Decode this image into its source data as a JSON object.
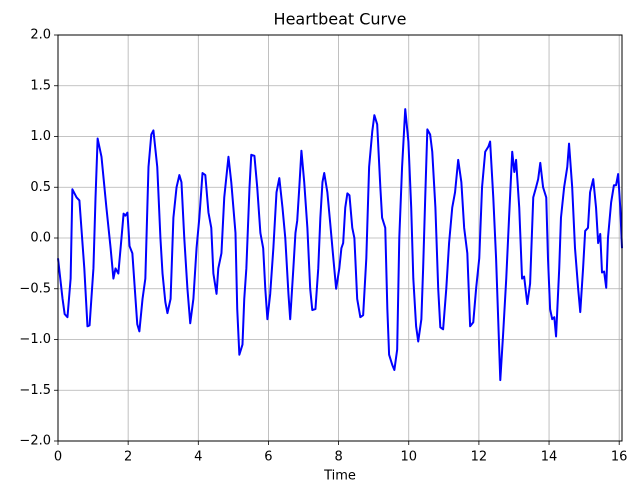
{
  "chart_data": {
    "type": "line",
    "title": "Heartbeat Curve",
    "xlabel": "Time",
    "color": "#0000ff",
    "grid": true,
    "xlim": [
      0,
      16.08
    ],
    "ylim": [
      -2.0,
      2.0
    ],
    "xticks": [
      0,
      2,
      4,
      6,
      8,
      10,
      12,
      14,
      16
    ],
    "yticks": [
      {
        "value": -2.0,
        "label": "−2.0"
      },
      {
        "value": -1.5,
        "label": "−1.5"
      },
      {
        "value": -1.0,
        "label": "−1.0"
      },
      {
        "value": -0.5,
        "label": "−0.5"
      },
      {
        "value": 0.0,
        "label": "0.0"
      },
      0.5,
      {
        "value": 1.0,
        "label": "1.0"
      },
      1.5,
      {
        "value": 2.0,
        "label": "2.0"
      }
    ],
    "x": [
      0,
      0.13,
      0.19,
      0.27,
      0.36,
      0.41,
      0.53,
      0.61,
      0.75,
      0.84,
      0.9,
      1.01,
      1.07,
      1.13,
      1.24,
      1.38,
      1.5,
      1.58,
      1.64,
      1.72,
      1.81,
      1.87,
      1.92,
      1.98,
      2.04,
      2.12,
      2.21,
      2.26,
      2.32,
      2.41,
      2.49,
      2.58,
      2.66,
      2.72,
      2.83,
      2.92,
      2.98,
      3.06,
      3.12,
      3.21,
      3.29,
      3.38,
      3.46,
      3.52,
      3.6,
      3.69,
      3.77,
      3.86,
      3.95,
      4.03,
      4.12,
      4.2,
      4.29,
      4.37,
      4.43,
      4.52,
      4.57,
      4.66,
      4.74,
      4.86,
      4.94,
      5.06,
      5.11,
      5.17,
      5.26,
      5.31,
      5.37,
      5.46,
      5.51,
      5.6,
      5.68,
      5.77,
      5.85,
      5.91,
      5.97,
      6.05,
      6.14,
      6.23,
      6.31,
      6.4,
      6.48,
      6.57,
      6.62,
      6.71,
      6.77,
      6.82,
      6.88,
      6.94,
      7.02,
      7.11,
      7.19,
      7.25,
      7.34,
      7.42,
      7.48,
      7.54,
      7.59,
      7.68,
      7.76,
      7.85,
      7.93,
      8.02,
      8.08,
      8.13,
      8.19,
      8.25,
      8.31,
      8.39,
      8.45,
      8.53,
      8.62,
      8.7,
      8.79,
      8.87,
      8.96,
      9.02,
      9.1,
      9.19,
      9.24,
      9.33,
      9.39,
      9.44,
      9.53,
      9.59,
      9.67,
      9.73,
      9.81,
      9.9,
      9.99,
      10.07,
      10.13,
      10.21,
      10.27,
      10.36,
      10.41,
      10.47,
      10.53,
      10.61,
      10.67,
      10.76,
      10.84,
      10.9,
      10.98,
      11.07,
      11.15,
      11.24,
      11.32,
      11.41,
      11.5,
      11.58,
      11.67,
      11.75,
      11.84,
      11.92,
      12.01,
      12.09,
      12.18,
      12.27,
      12.32,
      12.41,
      12.49,
      12.55,
      12.61,
      12.69,
      12.78,
      12.86,
      12.95,
      13.01,
      13.06,
      13.15,
      13.23,
      13.29,
      13.38,
      13.46,
      13.55,
      13.63,
      13.69,
      13.75,
      13.83,
      13.92,
      13.97,
      14.03,
      14.09,
      14.15,
      14.2,
      14.29,
      14.34,
      14.43,
      14.52,
      14.57,
      14.66,
      14.74,
      14.83,
      14.89,
      14.97,
      15.03,
      15.11,
      15.17,
      15.26,
      15.34,
      15.4,
      15.46,
      15.51,
      15.57,
      15.63,
      15.68,
      15.77,
      15.85,
      15.91,
      15.97,
      16.03,
      16.08
    ],
    "values": [
      -0.2,
      -0.6,
      -0.75,
      -0.78,
      -0.4,
      0.48,
      0.4,
      0.37,
      -0.3,
      -0.87,
      -0.86,
      -0.3,
      0.4,
      0.98,
      0.8,
      0.3,
      -0.1,
      -0.4,
      -0.3,
      -0.35,
      0.0,
      0.24,
      0.22,
      0.25,
      -0.08,
      -0.15,
      -0.6,
      -0.85,
      -0.92,
      -0.6,
      -0.4,
      0.7,
      1.02,
      1.06,
      0.7,
      0.0,
      -0.35,
      -0.63,
      -0.74,
      -0.6,
      0.2,
      0.5,
      0.62,
      0.55,
      0.0,
      -0.5,
      -0.84,
      -0.6,
      -0.1,
      0.2,
      0.64,
      0.62,
      0.25,
      0.1,
      -0.35,
      -0.55,
      -0.3,
      -0.15,
      0.4,
      0.8,
      0.55,
      0.05,
      -0.7,
      -1.15,
      -1.05,
      -0.6,
      -0.3,
      0.5,
      0.82,
      0.81,
      0.5,
      0.05,
      -0.1,
      -0.5,
      -0.8,
      -0.55,
      -0.1,
      0.45,
      0.59,
      0.3,
      0.0,
      -0.55,
      -0.8,
      -0.3,
      0.05,
      0.17,
      0.5,
      0.86,
      0.55,
      0.1,
      -0.5,
      -0.71,
      -0.7,
      -0.3,
      0.2,
      0.55,
      0.64,
      0.45,
      0.15,
      -0.2,
      -0.5,
      -0.3,
      -0.1,
      -0.05,
      0.3,
      0.44,
      0.42,
      0.1,
      0.0,
      -0.6,
      -0.78,
      -0.76,
      -0.2,
      0.7,
      1.05,
      1.21,
      1.12,
      0.5,
      0.2,
      0.1,
      -0.7,
      -1.15,
      -1.25,
      -1.3,
      -1.1,
      0.0,
      0.7,
      1.27,
      0.95,
      0.3,
      -0.4,
      -0.87,
      -1.02,
      -0.8,
      -0.3,
      0.4,
      1.07,
      1.02,
      0.85,
      0.3,
      -0.5,
      -0.88,
      -0.9,
      -0.5,
      -0.05,
      0.3,
      0.45,
      0.77,
      0.55,
      0.1,
      -0.15,
      -0.87,
      -0.83,
      -0.5,
      -0.2,
      0.5,
      0.85,
      0.9,
      0.95,
      0.4,
      -0.2,
      -0.8,
      -1.4,
      -0.95,
      -0.4,
      0.2,
      0.85,
      0.65,
      0.77,
      0.3,
      -0.4,
      -0.38,
      -0.65,
      -0.45,
      0.4,
      0.5,
      0.58,
      0.74,
      0.5,
      0.4,
      -0.2,
      -0.7,
      -0.8,
      -0.78,
      -0.97,
      -0.3,
      0.2,
      0.5,
      0.7,
      0.93,
      0.5,
      -0.1,
      -0.5,
      -0.73,
      -0.3,
      0.07,
      0.1,
      0.45,
      0.58,
      0.3,
      -0.05,
      0.04,
      -0.34,
      -0.33,
      -0.49,
      0.0,
      0.35,
      0.52,
      0.52,
      0.63,
      0.3,
      -0.1
    ]
  }
}
